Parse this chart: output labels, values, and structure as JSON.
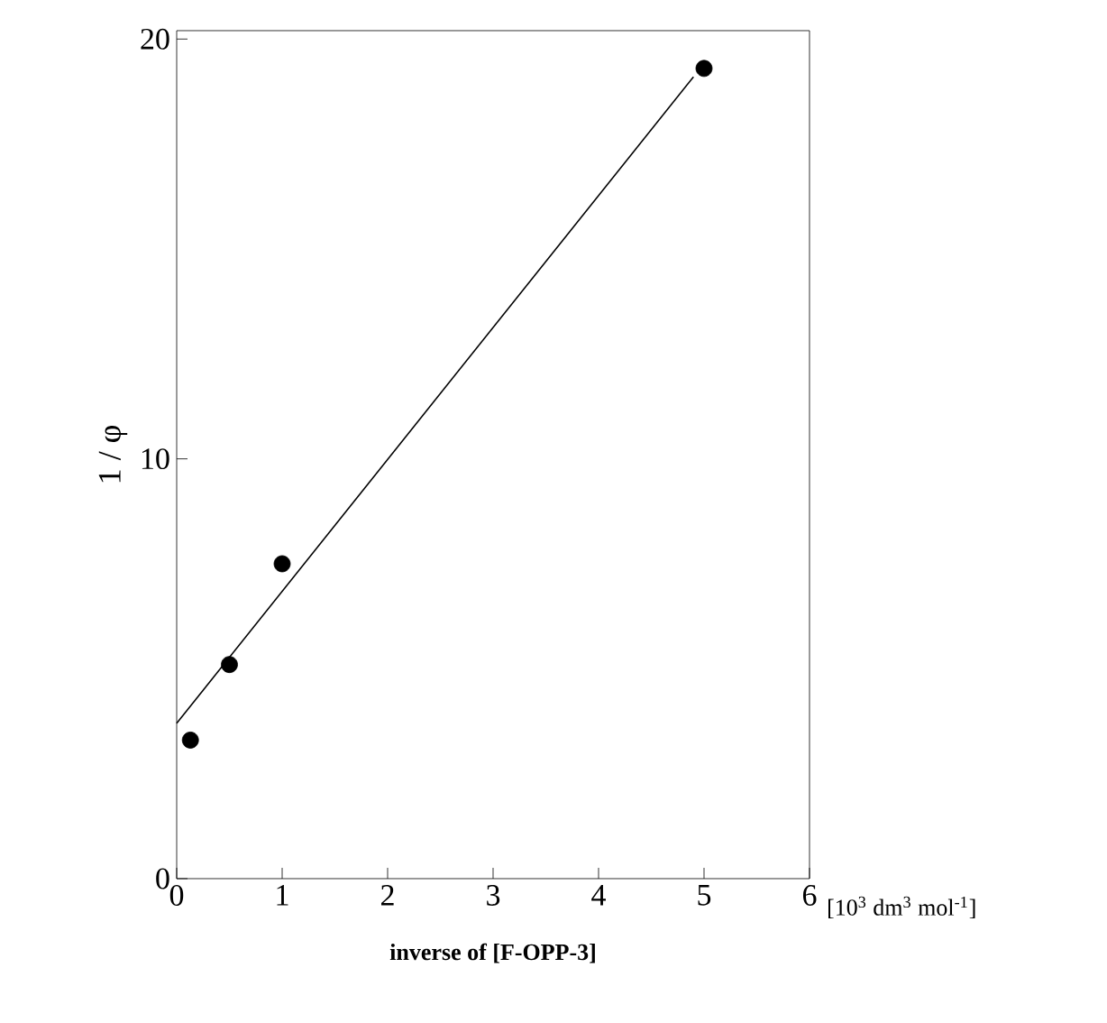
{
  "chart_data": {
    "type": "scatter",
    "xlabel": "inverse of [F-OPP-3]",
    "ylabel": "1 / φ",
    "annotations": [
      "[10$^{3}$ dm$^{3}$ mol$^{-1}$]"
    ],
    "xlim": [
      0,
      6
    ],
    "ylim": [
      0,
      20.2
    ],
    "xticks": [
      0,
      1,
      2,
      3,
      4,
      5,
      6
    ],
    "yticks": [
      0,
      10,
      20
    ],
    "marker": "circle",
    "grid": false,
    "series": [
      {
        "color": "#000000",
        "x": [
          0.13,
          0.5,
          1.0,
          5.0
        ],
        "values": [
          3.3,
          5.1,
          7.5,
          19.3
        ]
      },
      {
        "type": "line",
        "color": "#000000",
        "marker": "none",
        "x": [
          0,
          4.9
        ],
        "values": [
          3.7,
          19.1
        ]
      }
    ]
  }
}
